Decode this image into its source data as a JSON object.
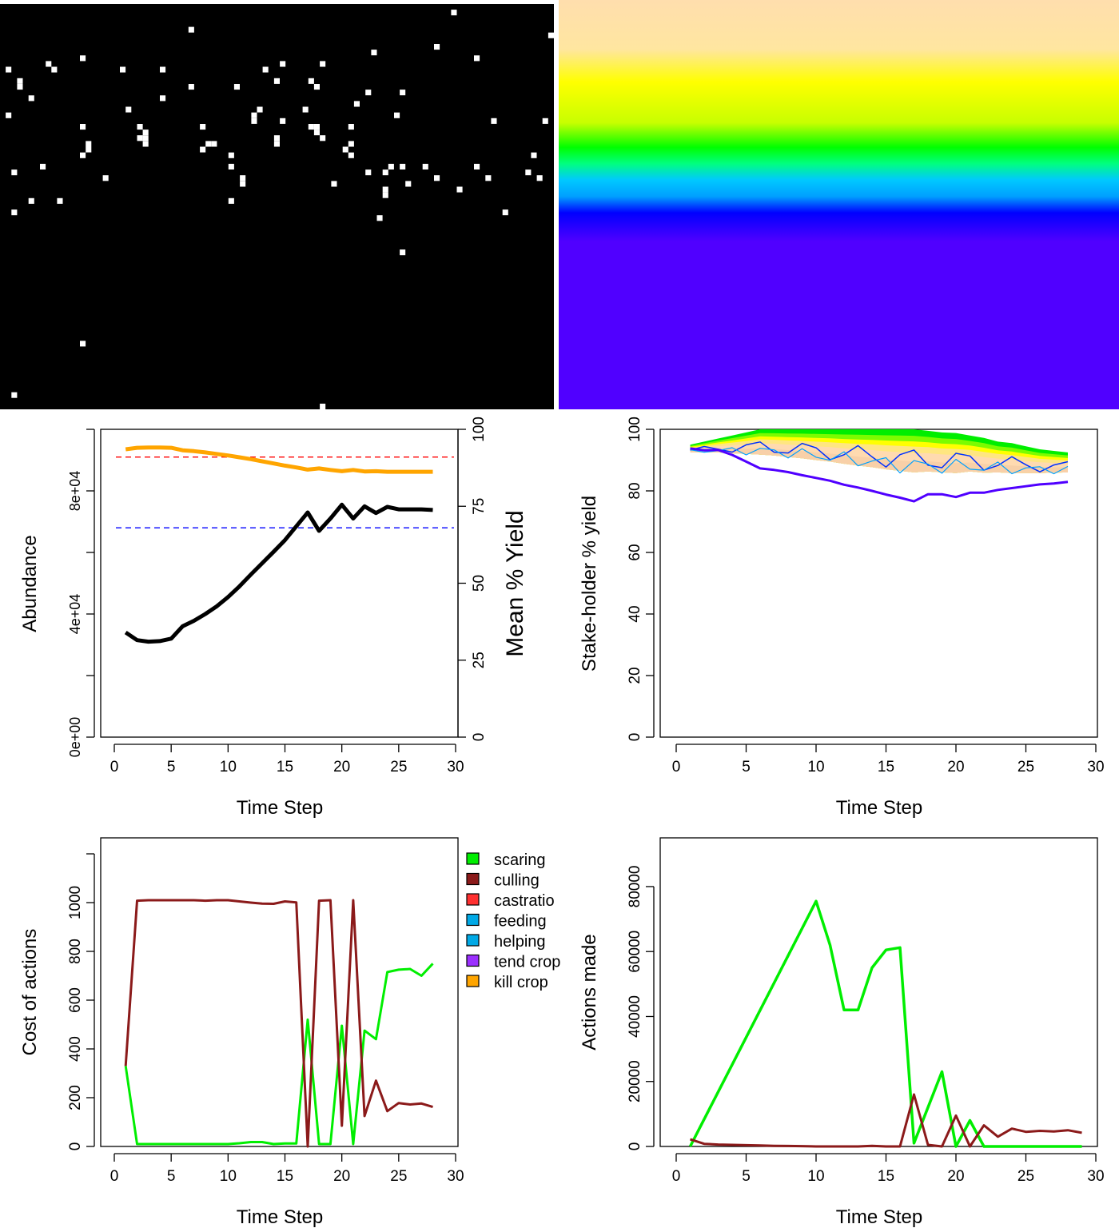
{
  "colors": {
    "abundance": "#000000",
    "yield": "#FFA500",
    "yield_target": "#FF0000",
    "manager_target": "#0000FF",
    "scaring": "#00EE00",
    "culling": "#8B1A1A",
    "castration": "#FF3030",
    "feeding": "#00A9E6",
    "helping": "#00A9E6",
    "tend_crop": "#9B30FF",
    "kill_crop": "#FFA500"
  },
  "chart_data": [
    {
      "type": "heatmap",
      "description": "landscape agent positions",
      "background": "#000000",
      "cell": "#FFFFFF",
      "grid": {
        "cols": 97,
        "rows": 71
      },
      "occupied_cells": [
        [
          79,
          1
        ],
        [
          96,
          5
        ],
        [
          33,
          4
        ],
        [
          76,
          7
        ],
        [
          14,
          9
        ],
        [
          65,
          8
        ],
        [
          83,
          9
        ],
        [
          8,
          10
        ],
        [
          1,
          11
        ],
        [
          9,
          11
        ],
        [
          21,
          11
        ],
        [
          46,
          11
        ],
        [
          49,
          10
        ],
        [
          56,
          10
        ],
        [
          28,
          11
        ],
        [
          33,
          14
        ],
        [
          41,
          14
        ],
        [
          64,
          15
        ],
        [
          70,
          15
        ],
        [
          3,
          13
        ],
        [
          3,
          14
        ],
        [
          48,
          13
        ],
        [
          54,
          13
        ],
        [
          55,
          14
        ],
        [
          28,
          16
        ],
        [
          62,
          17
        ],
        [
          45,
          18
        ],
        [
          53,
          18
        ],
        [
          22,
          18
        ],
        [
          5,
          16
        ],
        [
          1,
          19
        ],
        [
          44,
          19
        ],
        [
          69,
          19
        ],
        [
          86,
          20
        ],
        [
          95,
          20
        ],
        [
          14,
          21
        ],
        [
          24,
          21
        ],
        [
          35,
          21
        ],
        [
          44,
          20
        ],
        [
          49,
          20
        ],
        [
          54,
          21
        ],
        [
          55,
          21
        ],
        [
          61,
          21
        ],
        [
          25,
          22
        ],
        [
          24,
          23
        ],
        [
          48,
          23
        ],
        [
          56,
          23
        ],
        [
          15,
          24
        ],
        [
          25,
          23
        ],
        [
          25,
          24
        ],
        [
          37,
          24
        ],
        [
          48,
          24
        ],
        [
          55,
          22
        ],
        [
          61,
          24
        ],
        [
          36,
          24
        ],
        [
          60,
          25
        ],
        [
          14,
          26
        ],
        [
          15,
          25
        ],
        [
          40,
          26
        ],
        [
          35,
          25
        ],
        [
          61,
          26
        ],
        [
          93,
          26
        ],
        [
          2,
          29
        ],
        [
          7,
          28
        ],
        [
          40,
          28
        ],
        [
          67,
          29
        ],
        [
          68,
          28
        ],
        [
          70,
          28
        ],
        [
          74,
          28
        ],
        [
          83,
          28
        ],
        [
          64,
          29
        ],
        [
          85,
          30
        ],
        [
          92,
          29
        ],
        [
          94,
          30
        ],
        [
          18,
          30
        ],
        [
          42,
          30
        ],
        [
          76,
          30
        ],
        [
          58,
          31
        ],
        [
          42,
          31
        ],
        [
          71,
          31
        ],
        [
          80,
          32
        ],
        [
          5,
          34
        ],
        [
          10,
          34
        ],
        [
          40,
          34
        ],
        [
          67,
          32
        ],
        [
          67,
          33
        ],
        [
          88,
          36
        ],
        [
          2,
          36
        ],
        [
          66,
          37
        ],
        [
          70,
          43
        ],
        [
          14,
          59
        ],
        [
          2,
          68
        ],
        [
          56,
          70
        ],
        [
          57,
          71
        ]
      ]
    },
    {
      "type": "heatmap",
      "description": "landscape crop yield",
      "bands": [
        "#FFDEAD",
        "#FFE6A0",
        "#FFFF00",
        "#C8FF00",
        "#00FF00",
        "#00FF80",
        "#00C8FF",
        "#00A0FF",
        "#0000FF",
        "#5000FF"
      ]
    },
    {
      "type": "line",
      "xlabel": "Time Step",
      "ylabel": "Abundance",
      "y2label": "Mean % Yield",
      "xlim": [
        0,
        30
      ],
      "ylim": [
        0,
        100000
      ],
      "y2lim": [
        0,
        100
      ],
      "x_ticks": [
        "0",
        "5",
        "10",
        "15",
        "20",
        "25",
        "30"
      ],
      "y_ticks": [
        "0e+00",
        "4e+04",
        "8e+04"
      ],
      "y_ticks_minor": [
        20000,
        60000,
        100000
      ],
      "y2_ticks": [
        "0",
        "25",
        "50",
        "75",
        "100"
      ],
      "series": [
        {
          "x": [
            1,
            2,
            3,
            4,
            5,
            6,
            7,
            8,
            9,
            10,
            11,
            12,
            13,
            14,
            15,
            16,
            17,
            18,
            19,
            20,
            21,
            22,
            23,
            24,
            25,
            26,
            27,
            28
          ],
          "values": [
            34000,
            31500,
            31000,
            31200,
            32000,
            36000,
            37800,
            40000,
            42500,
            45500,
            49000,
            52800,
            56500,
            60200,
            64000,
            68500,
            73000,
            67000,
            71000,
            75500,
            71000,
            75000,
            72800,
            74800,
            74000,
            74000,
            74000,
            73800
          ]
        },
        {
          "x": [
            1,
            2,
            3,
            4,
            5,
            6,
            7,
            8,
            9,
            10,
            11,
            12,
            13,
            14,
            15,
            16,
            17,
            18,
            19,
            20,
            21,
            22,
            23,
            24,
            25,
            26,
            27,
            28
          ],
          "values": [
            93.5,
            94,
            94.1,
            94.1,
            94,
            93.2,
            92.9,
            92.5,
            92,
            91.5,
            90.9,
            90.3,
            89.6,
            88.9,
            88.2,
            87.6,
            86.9,
            87.3,
            86.8,
            86.4,
            86.8,
            86.3,
            86.4,
            86.2,
            86.2,
            86.2,
            86.2,
            86.2
          ]
        }
      ],
      "hlines": [
        {
          "axis": "right",
          "value": 91
        },
        {
          "axis": "left",
          "value": 68000
        }
      ]
    },
    {
      "type": "line",
      "xlabel": "Time Step",
      "ylabel": "Stake-holder % yield",
      "xlim": [
        0,
        30
      ],
      "ylim": [
        0,
        100
      ],
      "x_ticks": [
        "0",
        "5",
        "10",
        "15",
        "20",
        "25",
        "30"
      ],
      "y_ticks": [
        "0",
        "20",
        "40",
        "60",
        "80",
        "100"
      ],
      "lowest_series": {
        "x": [
          1,
          2,
          3,
          4,
          5,
          6,
          7,
          8,
          9,
          10,
          11,
          12,
          13,
          14,
          15,
          16,
          17,
          18,
          19,
          20,
          21,
          22,
          23,
          24,
          25,
          26,
          27,
          28
        ],
        "values": [
          93.8,
          93.2,
          93.3,
          91.7,
          89.5,
          87.3,
          86.8,
          86.1,
          85.1,
          84.2,
          83.3,
          82,
          81.1,
          80,
          78.8,
          77.8,
          76.6,
          78.9,
          78.9,
          78,
          79.4,
          79.4,
          80.3,
          80.9,
          81.5,
          82.1,
          82.4,
          82.9
        ]
      },
      "band_top": {
        "x": [
          1,
          2,
          3,
          4,
          5,
          6,
          7,
          8,
          9,
          10,
          11,
          12,
          13,
          14,
          15,
          16,
          17,
          18,
          19,
          20,
          21,
          22,
          23,
          24,
          25,
          26,
          27,
          28
        ],
        "values": [
          95,
          96,
          97,
          98,
          99,
          100,
          100,
          100,
          100,
          100,
          100,
          100,
          100,
          100,
          100,
          100,
          100,
          99.5,
          99,
          98.8,
          98,
          97.2,
          96,
          95.5,
          94.5,
          93.5,
          93,
          92.5
        ]
      },
      "band_bottom": {
        "x": [
          1,
          2,
          3,
          4,
          5,
          6,
          7,
          8,
          9,
          10,
          11,
          12,
          13,
          14,
          15,
          16,
          17,
          18,
          19,
          20,
          21,
          22,
          23,
          24,
          25,
          26,
          27,
          28
        ],
        "values": [
          92.5,
          92.5,
          92.5,
          92.2,
          92,
          91.8,
          91.5,
          91,
          90.6,
          90,
          89.5,
          88.8,
          88.2,
          87.7,
          87,
          86.5,
          86,
          86.3,
          86,
          85.8,
          86.3,
          85.9,
          86,
          85.8,
          85.8,
          85.8,
          85.9,
          86
        ]
      }
    },
    {
      "type": "line",
      "xlabel": "Time Step",
      "ylabel": "Cost of actions",
      "xlim": [
        0,
        30
      ],
      "ylim": [
        0,
        1200
      ],
      "x_ticks": [
        "0",
        "5",
        "10",
        "15",
        "20",
        "25",
        "30"
      ],
      "y_ticks": [
        "0",
        "200",
        "400",
        "600",
        "800",
        "1000"
      ],
      "y_ticks_minor": [
        1200
      ],
      "legend": [
        "scaring",
        "culling",
        "castratio",
        "feeding",
        "helping",
        "tend crop",
        "kill crop"
      ],
      "series": [
        {
          "name": "scaring",
          "x": [
            1,
            2,
            3,
            4,
            5,
            6,
            7,
            8,
            9,
            10,
            11,
            12,
            13,
            14,
            15,
            16,
            17,
            18,
            19,
            20,
            21,
            22,
            23,
            24,
            25,
            26,
            27,
            28
          ],
          "values": [
            330,
            10,
            10,
            10,
            10,
            10,
            10,
            10,
            10,
            10,
            13,
            18,
            18,
            10,
            12,
            12,
            520,
            10,
            10,
            495,
            10,
            475,
            440,
            715,
            725,
            728,
            700,
            750
          ]
        },
        {
          "name": "culling",
          "x": [
            1,
            2,
            3,
            4,
            5,
            6,
            7,
            8,
            9,
            10,
            11,
            12,
            13,
            14,
            15,
            16,
            17,
            18,
            19,
            20,
            21,
            22,
            23,
            24,
            25,
            26,
            27,
            28
          ],
          "values": [
            330,
            1008,
            1010,
            1010,
            1010,
            1010,
            1010,
            1008,
            1010,
            1010,
            1005,
            1000,
            996,
            995,
            1005,
            1001,
            0,
            1008,
            1010,
            85,
            1010,
            125,
            270,
            145,
            178,
            172,
            176,
            162
          ]
        }
      ]
    },
    {
      "type": "line",
      "xlabel": "Time Step",
      "ylabel": "Actions made",
      "xlim": [
        0,
        30
      ],
      "ylim": [
        0,
        95000
      ],
      "x_ticks": [
        "0",
        "5",
        "10",
        "15",
        "20",
        "25",
        "30"
      ],
      "y_ticks": [
        "0",
        "20000",
        "40000",
        "60000",
        "80000"
      ],
      "series": [
        {
          "name": "scaring",
          "x": [
            1,
            10,
            11,
            12,
            13,
            14,
            15,
            16,
            17,
            18,
            19,
            20,
            21,
            22,
            23,
            24,
            25,
            26,
            27,
            28,
            29
          ],
          "values": [
            0,
            75500,
            62000,
            42000,
            42000,
            55000,
            60500,
            61200,
            1000,
            12000,
            23000,
            0,
            8000,
            0,
            0,
            0,
            0,
            0,
            0,
            0,
            0
          ]
        },
        {
          "name": "culling",
          "x": [
            1,
            2,
            3,
            4,
            5,
            6,
            7,
            8,
            9,
            10,
            11,
            12,
            13,
            14,
            15,
            16,
            17,
            18,
            19,
            20,
            21,
            22,
            23,
            24,
            25,
            26,
            27,
            28,
            29
          ],
          "values": [
            2200,
            800,
            600,
            500,
            400,
            300,
            200,
            150,
            100,
            0,
            0,
            0,
            0,
            200,
            0,
            0,
            16000,
            500,
            0,
            9500,
            0,
            6500,
            3000,
            5500,
            4500,
            4800,
            4600,
            5000,
            4200
          ]
        }
      ]
    }
  ]
}
